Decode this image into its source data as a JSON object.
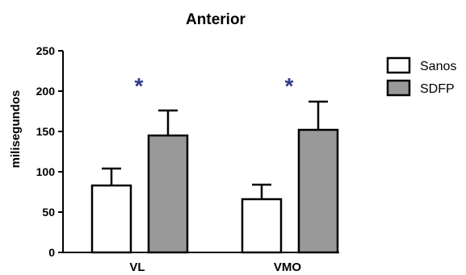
{
  "chart_data": {
    "type": "bar",
    "title": "Anterior",
    "xlabel": "",
    "ylabel": "milisegundos",
    "ylim": [
      0,
      250
    ],
    "yticks": [
      0,
      50,
      100,
      150,
      200,
      250
    ],
    "categories": [
      "VL",
      "VMO"
    ],
    "series": [
      {
        "name": "Sanos",
        "values": [
          83,
          66
        ],
        "errors": [
          21,
          18
        ],
        "color": "#ffffff"
      },
      {
        "name": "SDFP",
        "values": [
          145,
          152
        ],
        "errors": [
          31,
          35
        ],
        "color": "#999999"
      }
    ],
    "annotations": [
      {
        "text": "*",
        "category": "VL",
        "color": "#2e3a87"
      },
      {
        "text": "*",
        "category": "VMO",
        "color": "#2e3a87"
      }
    ],
    "legend_position": "top-right",
    "grid": false
  }
}
